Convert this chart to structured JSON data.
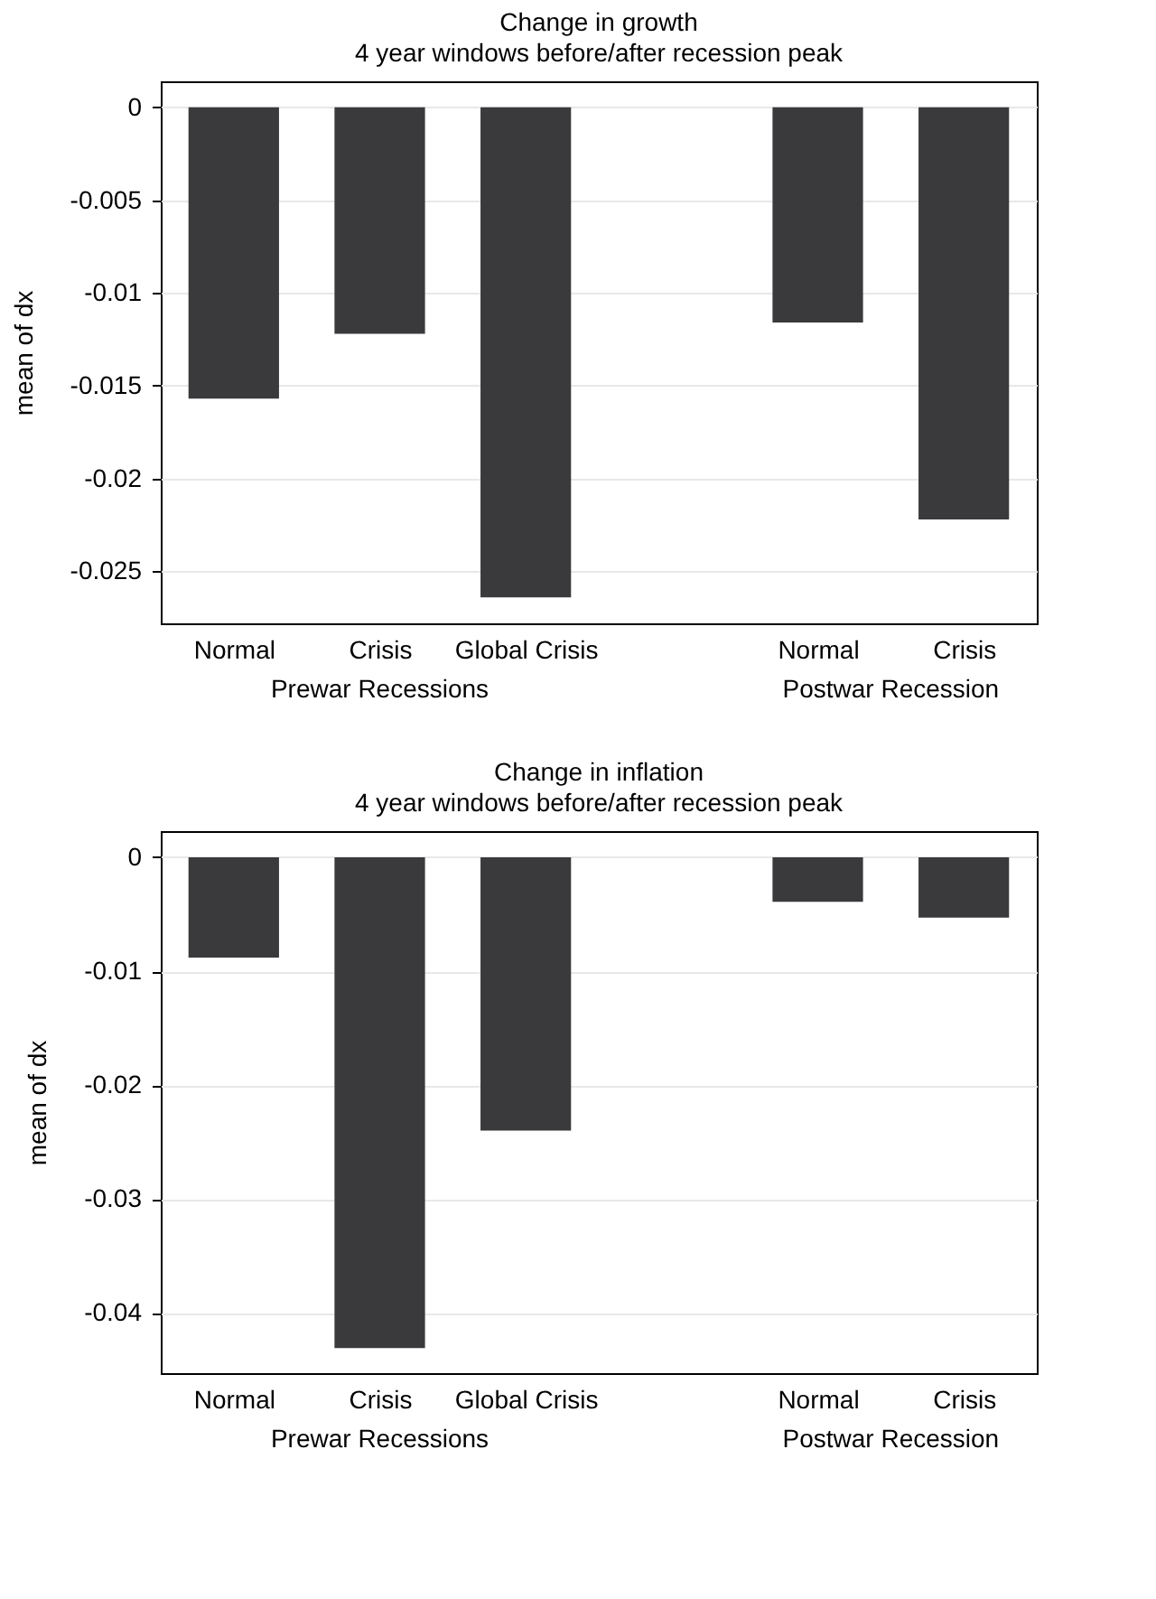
{
  "chart_data": [
    {
      "type": "bar",
      "title": "Change in growth",
      "subtitle": "4 year windows before/after recession peak",
      "ylabel": "mean of dx",
      "categories": [
        "Normal",
        "Crisis",
        "Global Crisis",
        null,
        "Normal",
        "Crisis"
      ],
      "values": [
        -0.0157,
        -0.0122,
        -0.0264,
        null,
        -0.0116,
        -0.0222
      ],
      "color": "#3a3a3c",
      "ylim": [
        -0.0278,
        0.0014
      ],
      "yticks": [
        0,
        -0.005,
        -0.01,
        -0.015,
        -0.02,
        -0.025
      ],
      "grid": "y",
      "annotations": [
        "Prewar Recessions",
        "Postwar Recession"
      ]
    },
    {
      "type": "bar",
      "title": "Change in inflation",
      "subtitle": "4 year windows before/after recession peak",
      "ylabel": "mean of dx",
      "categories": [
        "Normal",
        "Crisis",
        "Global Crisis",
        null,
        "Normal",
        "Crisis"
      ],
      "values": [
        -0.0088,
        -0.0431,
        -0.024,
        null,
        -0.0039,
        -0.0053
      ],
      "color": "#3a3a3c",
      "ylim": [
        -0.0453,
        0.0023
      ],
      "yticks": [
        0,
        -0.01,
        -0.02,
        -0.03,
        -0.04
      ],
      "grid": "y",
      "annotations": [
        "Prewar Recessions",
        "Postwar Recession"
      ]
    }
  ]
}
